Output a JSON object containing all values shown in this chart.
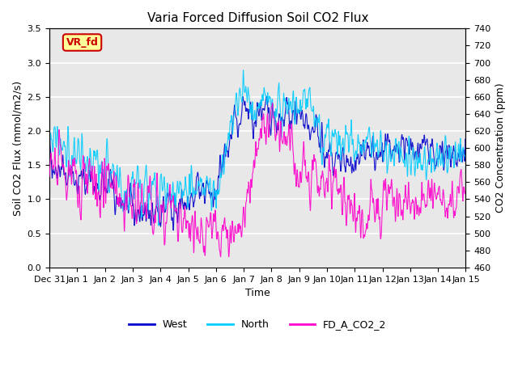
{
  "title": "Varia Forced Diffusion Soil CO2 Flux",
  "xlabel": "Time",
  "ylabel_left": "Soil CO2 Flux (mmol/m2/s)",
  "ylabel_right": "CO2 Concentration (ppm)",
  "ylim_left": [
    0.0,
    3.5
  ],
  "ylim_right": [
    460,
    740
  ],
  "xtick_labels": [
    "Dec 31",
    "Jan 1",
    "Jan 2",
    "Jan 3",
    "Jan 4",
    "Jan 5",
    "Jan 6",
    "Jan 7",
    "Jan 8",
    "Jan 9",
    "Jan 10",
    "Jan 11",
    "Jan 12",
    "Jan 13",
    "Jan 14",
    "Jan 15"
  ],
  "legend_labels": [
    "West",
    "North",
    "FD_A_CO2_2"
  ],
  "legend_colors": [
    "#0000CC",
    "#00CCFF",
    "#FF00CC"
  ],
  "west_color": "#0000CC",
  "north_color": "#00CCFF",
  "co2_color": "#FF00CC",
  "annotation_text": "VR_fd",
  "annotation_color": "#CC0000",
  "annotation_bg": "#FFFF99",
  "annotation_border": "#CC0000",
  "background_color": "#E8E8E8",
  "grid_color": "#FFFFFF",
  "seed": 42
}
